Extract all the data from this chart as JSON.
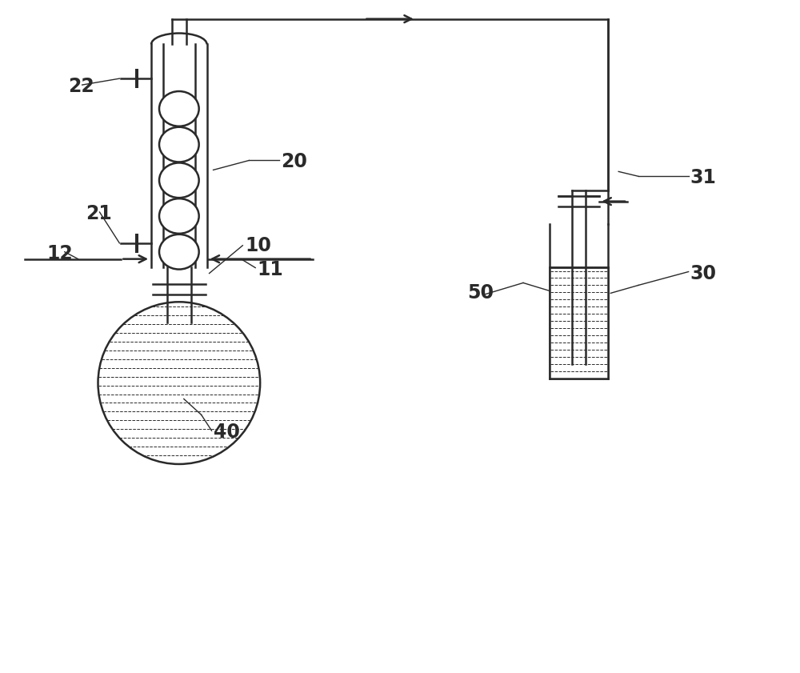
{
  "bg_color": "#ffffff",
  "line_color": "#2a2a2a",
  "lw": 1.8,
  "fig_width": 10.0,
  "fig_height": 8.41,
  "label_fontsize": 17,
  "label_fontweight": "bold",
  "labels": [
    [
      "10",
      3.05,
      5.35
    ],
    [
      "11",
      3.2,
      5.05
    ],
    [
      "12",
      0.55,
      5.25
    ],
    [
      "20",
      3.5,
      6.4
    ],
    [
      "21",
      1.05,
      5.75
    ],
    [
      "22",
      0.82,
      7.35
    ],
    [
      "30",
      8.65,
      5.0
    ],
    [
      "31",
      8.65,
      6.2
    ],
    [
      "40",
      2.65,
      3.0
    ],
    [
      "50",
      5.85,
      4.75
    ]
  ]
}
